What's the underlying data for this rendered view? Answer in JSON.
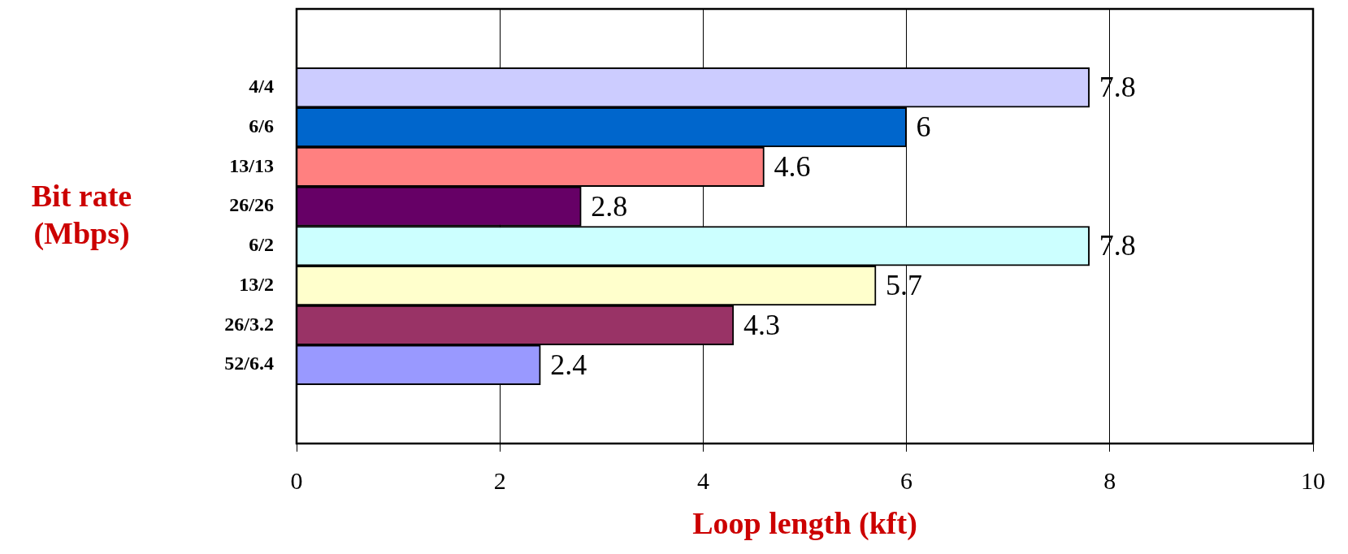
{
  "chart_data": {
    "type": "bar",
    "orientation": "horizontal",
    "xlabel": "Loop length (kft)",
    "ylabel": "Bit rate (Mbps)",
    "categories": [
      "4/4",
      "6/6",
      "13/13",
      "26/26",
      "6/2",
      "13/2",
      "26/3.2",
      "52/6.4"
    ],
    "values": [
      7.8,
      6,
      4.6,
      2.8,
      7.8,
      5.7,
      4.3,
      2.4
    ],
    "colors": [
      "#ccccff",
      "#0066cc",
      "#ff8080",
      "#660066",
      "#ccffff",
      "#ffffcc",
      "#993366",
      "#9999ff"
    ],
    "xlim": [
      0,
      10
    ],
    "xticks": [
      0,
      2,
      4,
      6,
      8,
      10
    ],
    "grid": "x",
    "data_labels": true
  }
}
